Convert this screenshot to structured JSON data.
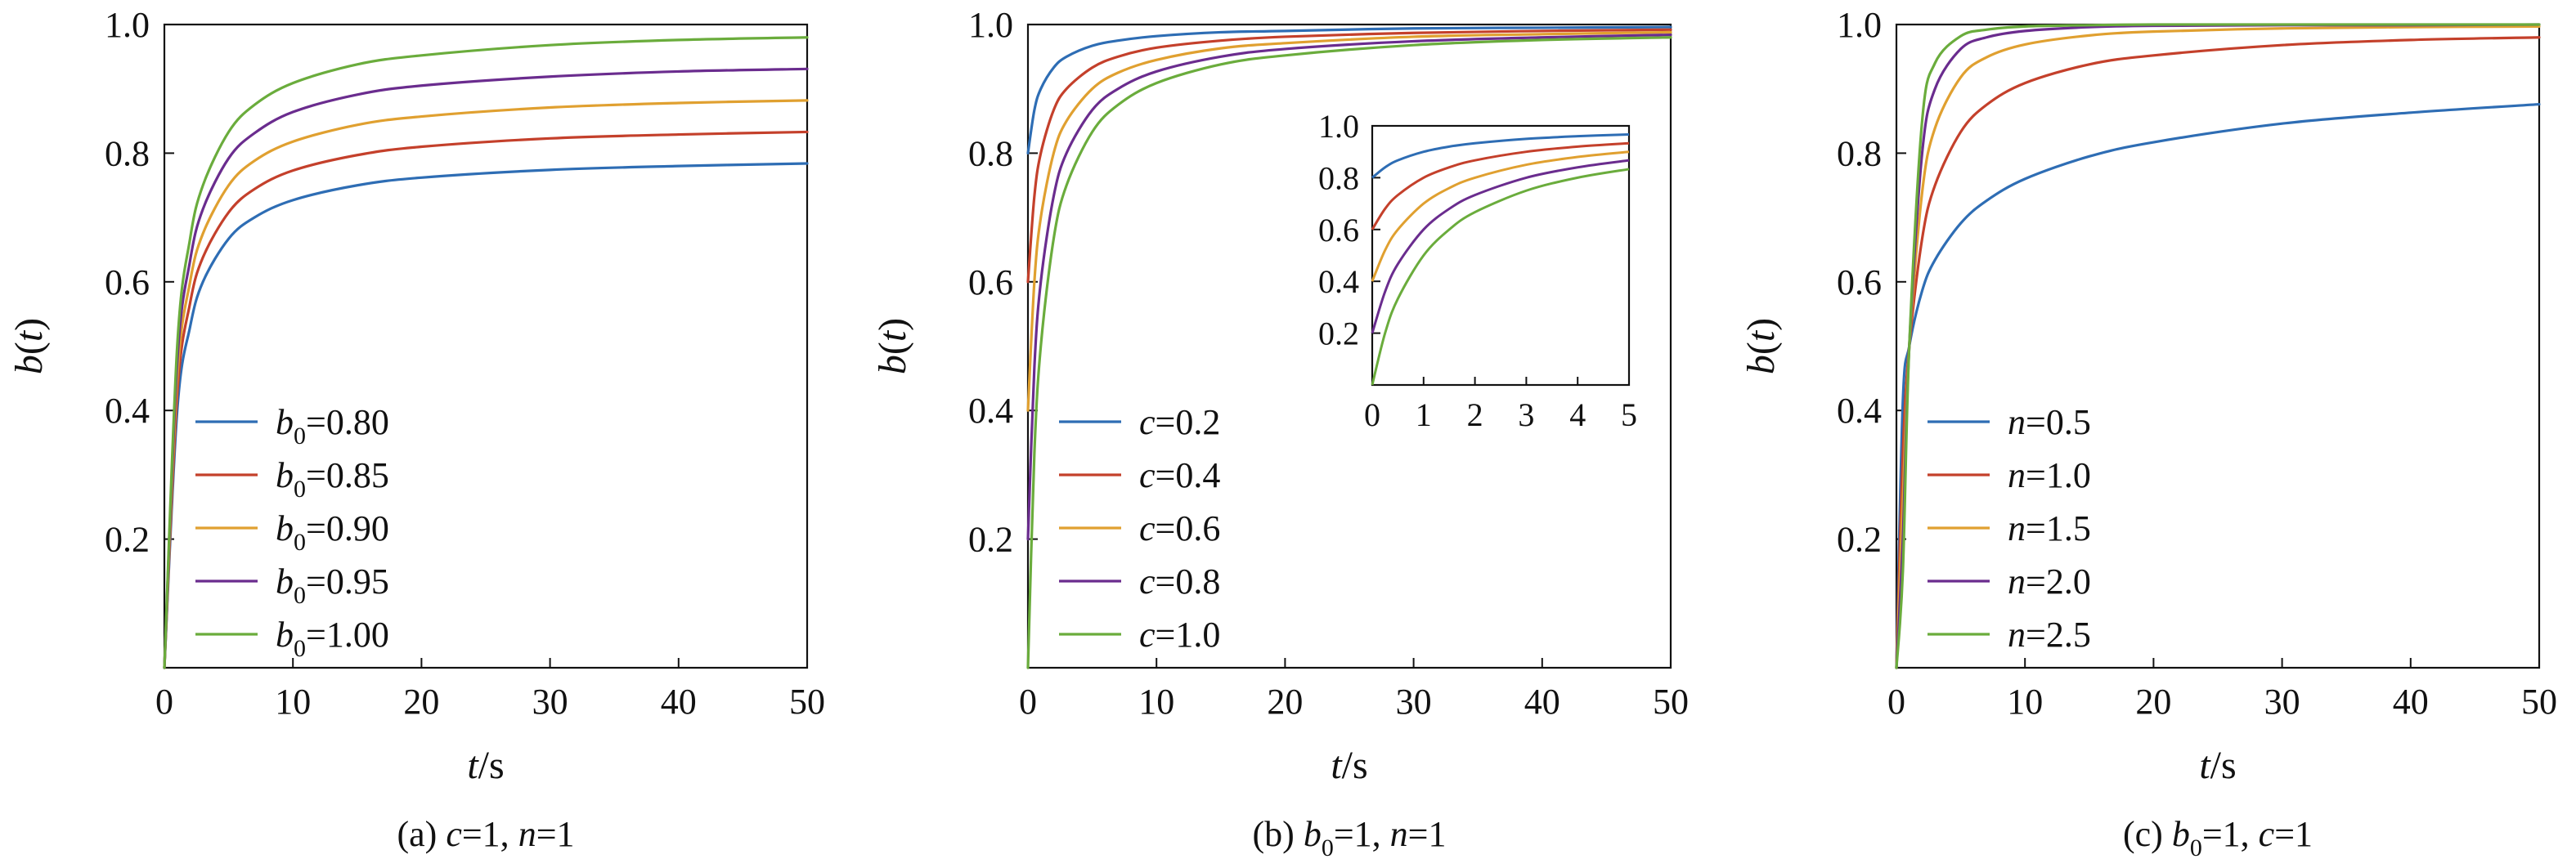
{
  "colors": {
    "blue": "#2e6db4",
    "red": "#c4402b",
    "gold": "#e0a030",
    "purple": "#6a2c8e",
    "green": "#6aac3c"
  },
  "chart_data": [
    {
      "type": "line",
      "caption": "(a) c=1, n=1",
      "caption_parts": {
        "prefix": "(a) ",
        "sym1": "c",
        "mid": "=1, ",
        "sym2": "n",
        "suffix": "=1"
      },
      "xlabel": "t/s",
      "ylabel": "b(t)",
      "xlim": [
        0,
        50
      ],
      "ylim": [
        0,
        1.0
      ],
      "x_ticks": [
        "0",
        "10",
        "20",
        "30",
        "40",
        "50"
      ],
      "y_ticks": [
        "0.2",
        "0.4",
        "0.6",
        "0.8",
        "1.0"
      ],
      "legend_position": "bottom-left",
      "grid": false,
      "x": [
        0,
        1,
        2,
        3,
        5,
        7,
        10,
        15,
        20,
        30,
        40,
        50
      ],
      "series": [
        {
          "name": "b0=0.80",
          "legend_symbol": "b",
          "legend_sub": "0",
          "legend_value": "=0.80",
          "color": "blue",
          "values": [
            0,
            0.4,
            0.53,
            0.6,
            0.667,
            0.7,
            0.727,
            0.75,
            0.762,
            0.774,
            0.78,
            0.784
          ]
        },
        {
          "name": "b0=0.85",
          "legend_symbol": "b",
          "legend_sub": "0",
          "legend_value": "=0.85",
          "color": "red",
          "values": [
            0,
            0.425,
            0.567,
            0.638,
            0.708,
            0.744,
            0.773,
            0.797,
            0.81,
            0.823,
            0.829,
            0.833
          ]
        },
        {
          "name": "b0=0.90",
          "legend_symbol": "b",
          "legend_sub": "0",
          "legend_value": "=0.90",
          "color": "gold",
          "values": [
            0,
            0.45,
            0.6,
            0.675,
            0.75,
            0.788,
            0.818,
            0.844,
            0.857,
            0.871,
            0.878,
            0.882
          ]
        },
        {
          "name": "b0=0.95",
          "legend_symbol": "b",
          "legend_sub": "0",
          "legend_value": "=0.95",
          "color": "purple",
          "values": [
            0,
            0.475,
            0.633,
            0.713,
            0.792,
            0.831,
            0.864,
            0.891,
            0.905,
            0.919,
            0.927,
            0.931
          ]
        },
        {
          "name": "b0=1.00",
          "legend_symbol": "b",
          "legend_sub": "0",
          "legend_value": "=1.00",
          "color": "green",
          "values": [
            0,
            0.5,
            0.667,
            0.75,
            0.833,
            0.875,
            0.909,
            0.938,
            0.952,
            0.968,
            0.976,
            0.98
          ]
        }
      ]
    },
    {
      "type": "line",
      "caption": "(b) b0=1, n=1",
      "caption_parts": {
        "prefix": "(b) ",
        "sym1": "b",
        "sub1": "0",
        "mid": "=1, ",
        "sym2": "n",
        "suffix": "=1"
      },
      "xlabel": "t/s",
      "ylabel": "b(t)",
      "xlim": [
        0,
        50
      ],
      "ylim": [
        0,
        1.0
      ],
      "x_ticks": [
        "0",
        "10",
        "20",
        "30",
        "40",
        "50"
      ],
      "y_ticks": [
        "0.2",
        "0.4",
        "0.6",
        "0.8",
        "1.0"
      ],
      "legend_position": "bottom-left",
      "grid": false,
      "x": [
        0,
        0.5,
        1,
        2,
        3,
        5,
        7,
        10,
        15,
        20,
        30,
        40,
        50
      ],
      "series": [
        {
          "name": "c=0.2",
          "legend_symbol": "c",
          "legend_value": "=0.2",
          "color": "blue",
          "values": [
            0.8,
            0.867,
            0.9,
            0.933,
            0.95,
            0.967,
            0.975,
            0.982,
            0.988,
            0.99,
            0.994,
            0.995,
            0.996
          ]
        },
        {
          "name": "c=0.4",
          "legend_symbol": "c",
          "legend_value": "=0.4",
          "color": "red",
          "values": [
            0.6,
            0.733,
            0.8,
            0.867,
            0.9,
            0.933,
            0.95,
            0.964,
            0.975,
            0.981,
            0.987,
            0.99,
            0.992
          ]
        },
        {
          "name": "c=0.6",
          "legend_symbol": "c",
          "legend_value": "=0.6",
          "color": "gold",
          "values": [
            0.4,
            0.6,
            0.7,
            0.8,
            0.85,
            0.9,
            0.925,
            0.945,
            0.963,
            0.971,
            0.981,
            0.985,
            0.988
          ]
        },
        {
          "name": "c=0.8",
          "legend_symbol": "c",
          "legend_value": "=0.8",
          "color": "purple",
          "values": [
            0.2,
            0.467,
            0.6,
            0.733,
            0.8,
            0.867,
            0.9,
            0.927,
            0.95,
            0.962,
            0.974,
            0.98,
            0.984
          ]
        },
        {
          "name": "c=1.0",
          "legend_symbol": "c",
          "legend_value": "=1.0",
          "color": "green",
          "values": [
            0,
            0.333,
            0.5,
            0.667,
            0.75,
            0.833,
            0.875,
            0.909,
            0.938,
            0.952,
            0.968,
            0.976,
            0.98
          ]
        }
      ],
      "inset": {
        "xlim": [
          0,
          5
        ],
        "ylim": [
          0,
          1.0
        ],
        "x_ticks": [
          "0",
          "1",
          "2",
          "3",
          "4",
          "5"
        ],
        "y_ticks": [
          "0.2",
          "0.4",
          "0.6",
          "0.8",
          "1.0"
        ],
        "x": [
          0,
          0.25,
          0.5,
          1,
          1.5,
          2,
          3,
          4,
          5
        ],
        "series": [
          {
            "color": "blue",
            "values": [
              0.8,
              0.84,
              0.867,
              0.9,
              0.92,
              0.933,
              0.95,
              0.96,
              0.967
            ]
          },
          {
            "color": "red",
            "values": [
              0.6,
              0.68,
              0.733,
              0.8,
              0.84,
              0.867,
              0.9,
              0.92,
              0.933
            ]
          },
          {
            "color": "gold",
            "values": [
              0.4,
              0.52,
              0.6,
              0.7,
              0.76,
              0.8,
              0.85,
              0.88,
              0.9
            ]
          },
          {
            "color": "purple",
            "values": [
              0.2,
              0.36,
              0.467,
              0.6,
              0.68,
              0.733,
              0.8,
              0.84,
              0.867
            ]
          },
          {
            "color": "green",
            "values": [
              0,
              0.2,
              0.333,
              0.5,
              0.6,
              0.667,
              0.75,
              0.8,
              0.833
            ]
          }
        ]
      }
    },
    {
      "type": "line",
      "caption": "(c) b0=1, c=1",
      "caption_parts": {
        "prefix": "(c) ",
        "sym1": "b",
        "sub1": "0",
        "mid": "=1, ",
        "sym2": "c",
        "suffix": "=1"
      },
      "xlabel": "t/s",
      "ylabel": "b(t)",
      "xlim": [
        0,
        50
      ],
      "ylim": [
        0,
        1.0
      ],
      "x_ticks": [
        "0",
        "10",
        "20",
        "30",
        "40",
        "50"
      ],
      "y_ticks": [
        "0.2",
        "0.4",
        "0.6",
        "0.8",
        "1.0"
      ],
      "legend_position": "bottom-left",
      "grid": false,
      "x": [
        0,
        0.5,
        1,
        2,
        3,
        5,
        7,
        10,
        15,
        20,
        30,
        40,
        50
      ],
      "series": [
        {
          "name": "n=0.5",
          "legend_symbol": "n",
          "legend_value": "=0.5",
          "color": "blue",
          "values": [
            0,
            0.414,
            0.5,
            0.586,
            0.634,
            0.691,
            0.726,
            0.76,
            0.795,
            0.817,
            0.846,
            0.863,
            0.876
          ]
        },
        {
          "name": "n=1.0",
          "legend_symbol": "n",
          "legend_value": "=1.0",
          "color": "red",
          "values": [
            0,
            0.333,
            0.5,
            0.667,
            0.75,
            0.833,
            0.875,
            0.909,
            0.938,
            0.952,
            0.968,
            0.976,
            0.98
          ]
        },
        {
          "name": "n=1.5",
          "legend_symbol": "n",
          "legend_value": "=1.5",
          "color": "gold",
          "values": [
            0,
            0.261,
            0.5,
            0.739,
            0.839,
            0.918,
            0.949,
            0.969,
            0.983,
            0.989,
            0.994,
            0.996,
            0.997
          ]
        },
        {
          "name": "n=2.0",
          "legend_symbol": "n",
          "legend_value": "=2.0",
          "color": "purple",
          "values": [
            0,
            0.2,
            0.5,
            0.8,
            0.9,
            0.962,
            0.98,
            0.99,
            0.996,
            0.998,
            0.999,
            0.999,
            1.0
          ]
        },
        {
          "name": "n=2.5",
          "legend_symbol": "n",
          "legend_value": "=2.5",
          "color": "green",
          "values": [
            0,
            0.15,
            0.5,
            0.85,
            0.94,
            0.982,
            0.992,
            0.997,
            0.999,
            1.0,
            1.0,
            1.0,
            1.0
          ]
        }
      ]
    }
  ]
}
